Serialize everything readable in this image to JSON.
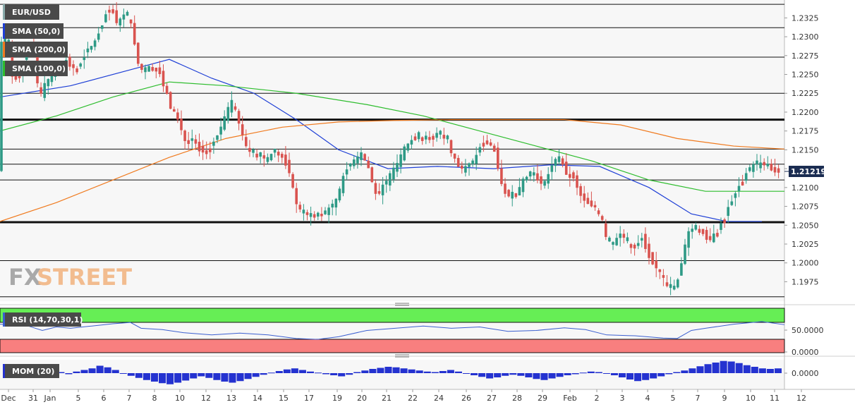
{
  "header": {
    "symbol": "EUR/USD",
    "last_price": "1.21219"
  },
  "indicators": {
    "sma50": "SMA (50,0)",
    "sma200": "SMA (200,0)",
    "sma100": "SMA (100,0)",
    "rsi": "RSI (14,70,30,1)",
    "mom": "MOM (20)"
  },
  "logo": {
    "part1": "FX",
    "part2": "STREET"
  },
  "colors": {
    "bull": "#2e9a86",
    "bear": "#d9534f",
    "sma50": "#1e3fd6",
    "sma100": "#2ebd2e",
    "sma200": "#f07a1e",
    "rsi_line": "#3b5fd0",
    "rsi_over": "#66ee55",
    "rsi_under": "#f87f7f",
    "mom_bar": "#2432d0",
    "tag_bg": "#1b2d52"
  },
  "chart_data": [
    {
      "type": "candlestick",
      "panel": "price",
      "ylim": [
        1.1952,
        1.2345
      ],
      "y_ticks": [
        "1.1975",
        "1.2000",
        "1.2025",
        "1.2050",
        "1.2075",
        "1.2100",
        "1.2125",
        "1.2150",
        "1.2175",
        "1.2200",
        "1.2225",
        "1.2250",
        "1.2275",
        "1.2300",
        "1.2325"
      ],
      "x_ticks": [
        "Dec",
        "31",
        "Jan",
        "5",
        "6",
        "7",
        "8",
        "10",
        "12",
        "13",
        "14",
        "15",
        "17",
        "19",
        "20",
        "21",
        "22",
        "24",
        "26",
        "27",
        "28",
        "29",
        "Feb",
        "2",
        "3",
        "4",
        "5",
        "7",
        "9",
        "10",
        "11",
        "12"
      ],
      "last_price": 1.21219,
      "support_resistance": [
        1.2343,
        1.2312,
        1.2273,
        1.2225,
        1.219,
        1.2151,
        1.2131,
        1.211,
        1.2054,
        1.2003,
        1.1955
      ],
      "bold_levels": [
        1.219,
        1.2054
      ],
      "anchors": [
        [
          0,
          1.229
        ],
        [
          14,
          1.23
        ],
        [
          20,
          1.2245
        ],
        [
          28,
          1.225
        ],
        [
          38,
          1.227
        ],
        [
          48,
          1.23
        ],
        [
          58,
          1.2215
        ],
        [
          65,
          1.2235
        ],
        [
          80,
          1.2255
        ],
        [
          95,
          1.227
        ],
        [
          110,
          1.2255
        ],
        [
          125,
          1.228
        ],
        [
          138,
          1.2295
        ],
        [
          152,
          1.233
        ],
        [
          160,
          1.2338
        ],
        [
          170,
          1.2315
        ],
        [
          180,
          1.2335
        ],
        [
          190,
          1.231
        ],
        [
          200,
          1.2255
        ],
        [
          210,
          1.2258
        ],
        [
          225,
          1.226
        ],
        [
          235,
          1.2235
        ],
        [
          245,
          1.2205
        ],
        [
          255,
          1.219
        ],
        [
          265,
          1.216
        ],
        [
          275,
          1.2165
        ],
        [
          285,
          1.215
        ],
        [
          295,
          1.215
        ],
        [
          305,
          1.216
        ],
        [
          318,
          1.2185
        ],
        [
          330,
          1.2215
        ],
        [
          340,
          1.219
        ],
        [
          350,
          1.2155
        ],
        [
          360,
          1.2148
        ],
        [
          370,
          1.2145
        ],
        [
          380,
          1.2135
        ],
        [
          392,
          1.215
        ],
        [
          402,
          1.214
        ],
        [
          412,
          1.2125
        ],
        [
          420,
          1.2085
        ],
        [
          430,
          1.2065
        ],
        [
          440,
          1.2065
        ],
        [
          450,
          1.206
        ],
        [
          460,
          1.2065
        ],
        [
          475,
          1.2075
        ],
        [
          485,
          1.21
        ],
        [
          495,
          1.213
        ],
        [
          505,
          1.2135
        ],
        [
          515,
          1.2145
        ],
        [
          525,
          1.2125
        ],
        [
          535,
          1.209
        ],
        [
          545,
          1.21
        ],
        [
          555,
          1.2115
        ],
        [
          565,
          1.213
        ],
        [
          575,
          1.215
        ],
        [
          585,
          1.2162
        ],
        [
          595,
          1.2172
        ],
        [
          605,
          1.2162
        ],
        [
          615,
          1.2168
        ],
        [
          625,
          1.2172
        ],
        [
          635,
          1.2165
        ],
        [
          645,
          1.214
        ],
        [
          655,
          1.2125
        ],
        [
          665,
          1.2125
        ],
        [
          675,
          1.2135
        ],
        [
          685,
          1.2162
        ],
        [
          695,
          1.216
        ],
        [
          705,
          1.2145
        ],
        [
          715,
          1.2095
        ],
        [
          725,
          1.209
        ],
        [
          735,
          1.2092
        ],
        [
          745,
          1.211
        ],
        [
          755,
          1.2122
        ],
        [
          765,
          1.211
        ],
        [
          775,
          1.2105
        ],
        [
          785,
          1.2132
        ],
        [
          795,
          1.214
        ],
        [
          805,
          1.212
        ],
        [
          815,
          1.2115
        ],
        [
          825,
          1.209
        ],
        [
          835,
          1.208
        ],
        [
          845,
          1.2075
        ],
        [
          855,
          1.206
        ],
        [
          862,
          1.203
        ],
        [
          872,
          1.2025
        ],
        [
          882,
          1.204
        ],
        [
          892,
          1.2025
        ],
        [
          902,
          1.202
        ],
        [
          912,
          1.2035
        ],
        [
          922,
          1.201
        ],
        [
          932,
          1.1995
        ],
        [
          942,
          1.198
        ],
        [
          952,
          1.1965
        ],
        [
          960,
          1.1965
        ],
        [
          968,
          1.2
        ],
        [
          978,
          1.204
        ],
        [
          988,
          1.205
        ],
        [
          998,
          1.204
        ],
        [
          1008,
          1.203
        ],
        [
          1018,
          1.204
        ],
        [
          1028,
          1.206
        ],
        [
          1038,
          1.208
        ],
        [
          1048,
          1.21
        ],
        [
          1058,
          1.2115
        ],
        [
          1068,
          1.2128
        ],
        [
          1078,
          1.213
        ],
        [
          1088,
          1.2132
        ],
        [
          1098,
          1.2122
        ],
        [
          1108,
          1.2122
        ]
      ]
    },
    {
      "type": "line",
      "panel": "price",
      "series": [
        {
          "name": "SMA (50,0)",
          "points": [
            [
              0,
              1.222
            ],
            [
              100,
              1.2235
            ],
            [
              180,
              1.2255
            ],
            [
              240,
              1.227
            ],
            [
              300,
              1.2245
            ],
            [
              360,
              1.2225
            ],
            [
              420,
              1.219
            ],
            [
              480,
              1.215
            ],
            [
              550,
              1.2125
            ],
            [
              620,
              1.2128
            ],
            [
              700,
              1.2125
            ],
            [
              780,
              1.213
            ],
            [
              850,
              1.2128
            ],
            [
              920,
              1.21
            ],
            [
              980,
              1.2065
            ],
            [
              1030,
              1.2055
            ],
            [
              1080,
              1.2055
            ]
          ]
        },
        {
          "name": "SMA (100,0)",
          "points": [
            [
              0,
              1.2175
            ],
            [
              80,
              1.2195
            ],
            [
              160,
              1.222
            ],
            [
              240,
              1.224
            ],
            [
              320,
              1.2235
            ],
            [
              420,
              1.2225
            ],
            [
              520,
              1.221
            ],
            [
              600,
              1.2195
            ],
            [
              680,
              1.2175
            ],
            [
              760,
              1.2155
            ],
            [
              840,
              1.2135
            ],
            [
              920,
              1.211
            ],
            [
              1000,
              1.2095
            ],
            [
              1050,
              1.2095
            ],
            [
              1112,
              1.2095
            ]
          ]
        },
        {
          "name": "SMA (200,0)",
          "points": [
            [
              0,
              1.2055
            ],
            [
              80,
              1.208
            ],
            [
              160,
              1.211
            ],
            [
              240,
              1.214
            ],
            [
              320,
              1.2165
            ],
            [
              400,
              1.218
            ],
            [
              480,
              1.2187
            ],
            [
              560,
              1.2189
            ],
            [
              640,
              1.219
            ],
            [
              720,
              1.219
            ],
            [
              800,
              1.219
            ],
            [
              880,
              1.2183
            ],
            [
              960,
              1.2165
            ],
            [
              1040,
              1.2155
            ],
            [
              1112,
              1.2151
            ]
          ]
        }
      ]
    },
    {
      "type": "line",
      "panel": "rsi",
      "ylim": [
        0,
        100
      ],
      "y_ticks": [
        "50.0000",
        "0.0000"
      ],
      "name": "RSI (14,70,30,1)",
      "points": [
        [
          0,
          64
        ],
        [
          40,
          60
        ],
        [
          60,
          50
        ],
        [
          80,
          58
        ],
        [
          100,
          55
        ],
        [
          130,
          60
        ],
        [
          160,
          65
        ],
        [
          185,
          68
        ],
        [
          200,
          55
        ],
        [
          230,
          52
        ],
        [
          260,
          45
        ],
        [
          300,
          40
        ],
        [
          340,
          44
        ],
        [
          380,
          40
        ],
        [
          420,
          32
        ],
        [
          450,
          30
        ],
        [
          480,
          36
        ],
        [
          520,
          50
        ],
        [
          560,
          55
        ],
        [
          600,
          60
        ],
        [
          640,
          55
        ],
        [
          680,
          58
        ],
        [
          720,
          48
        ],
        [
          760,
          50
        ],
        [
          800,
          56
        ],
        [
          830,
          52
        ],
        [
          860,
          40
        ],
        [
          900,
          38
        ],
        [
          940,
          33
        ],
        [
          960,
          32
        ],
        [
          980,
          50
        ],
        [
          1000,
          55
        ],
        [
          1040,
          64
        ],
        [
          1080,
          70
        ],
        [
          1112,
          63
        ]
      ]
    },
    {
      "type": "bar",
      "panel": "mom",
      "y_ticks": [
        "0.0000"
      ],
      "name": "MOM (20)",
      "values": [
        0.8,
        0.5,
        0.2,
        -0.1,
        -0.3,
        0.1,
        0.4,
        0.2,
        -0.2,
        0.3,
        0.6,
        0.9,
        1.4,
        1.1,
        0.6,
        -0.1,
        -0.5,
        -0.9,
        -1.3,
        -1.6,
        -1.9,
        -2.1,
        -1.8,
        -1.4,
        -1.0,
        -0.6,
        -0.9,
        -1.3,
        -1.6,
        -1.8,
        -1.5,
        -1.1,
        -0.7,
        -0.3,
        0.1,
        0.4,
        0.7,
        0.9,
        0.6,
        0.3,
        0.1,
        -0.2,
        -0.4,
        -0.6,
        -0.3,
        0.2,
        0.5,
        0.8,
        1.0,
        1.2,
        1.1,
        0.9,
        0.7,
        0.5,
        0.3,
        0.2,
        0.4,
        0.6,
        0.3,
        -0.1,
        -0.4,
        -0.7,
        -1.0,
        -0.8,
        -0.5,
        -0.3,
        -0.5,
        -0.8,
        -1.1,
        -1.3,
        -1.0,
        -0.7,
        -0.4,
        -0.2,
        0.1,
        0.3,
        0.2,
        -0.1,
        -0.4,
        -0.8,
        -1.2,
        -1.5,
        -1.3,
        -1.0,
        -0.6,
        -0.2,
        0.2,
        0.5,
        0.9,
        1.3,
        1.7,
        2.0,
        2.3,
        2.2,
        1.9,
        1.5,
        1.2,
        0.9,
        0.8,
        0.9
      ]
    }
  ]
}
